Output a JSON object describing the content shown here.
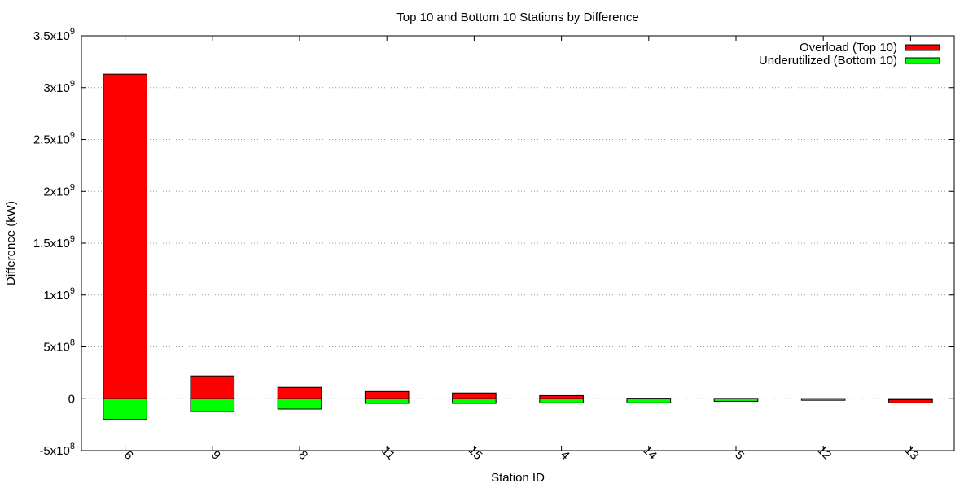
{
  "chart_data": {
    "type": "bar",
    "title": "Top 10 and Bottom 10 Stations by Difference",
    "xlabel": "Station ID",
    "ylabel": "Difference (kW)",
    "ylim": [
      -500000000,
      3500000000
    ],
    "y_ticks": [
      {
        "value": 3500000000,
        "mant": "3.5x10",
        "exp": "9"
      },
      {
        "value": 3000000000,
        "mant": "3x10",
        "exp": "9"
      },
      {
        "value": 2500000000,
        "mant": "2.5x10",
        "exp": "9"
      },
      {
        "value": 2000000000,
        "mant": "2x10",
        "exp": "9"
      },
      {
        "value": 1500000000,
        "mant": "1.5x10",
        "exp": "9"
      },
      {
        "value": 1000000000,
        "mant": "1x10",
        "exp": "9"
      },
      {
        "value": 500000000,
        "mant": "5x10",
        "exp": "8"
      },
      {
        "value": 0,
        "mant": "0",
        "exp": ""
      },
      {
        "value": -500000000,
        "mant": "-5x10",
        "exp": "8"
      }
    ],
    "categories": [
      "6",
      "9",
      "8",
      "11",
      "15",
      "4",
      "14",
      "5",
      "12",
      "13"
    ],
    "series": [
      {
        "name": "Overload (Top 10)",
        "color": "#ff0000",
        "values": [
          3130000000,
          220000000,
          110000000,
          70000000,
          55000000,
          30000000,
          5000000,
          3000000,
          -8000000,
          -40000000
        ]
      },
      {
        "name": "Underutilized (Bottom 10)",
        "color": "#00ff00",
        "values": [
          -200000000,
          -125000000,
          -100000000,
          -45000000,
          -45000000,
          -40000000,
          -40000000,
          -25000000,
          -15000000,
          -10000000
        ]
      }
    ],
    "grid": "y-dotted",
    "legend_position": "top-right"
  }
}
